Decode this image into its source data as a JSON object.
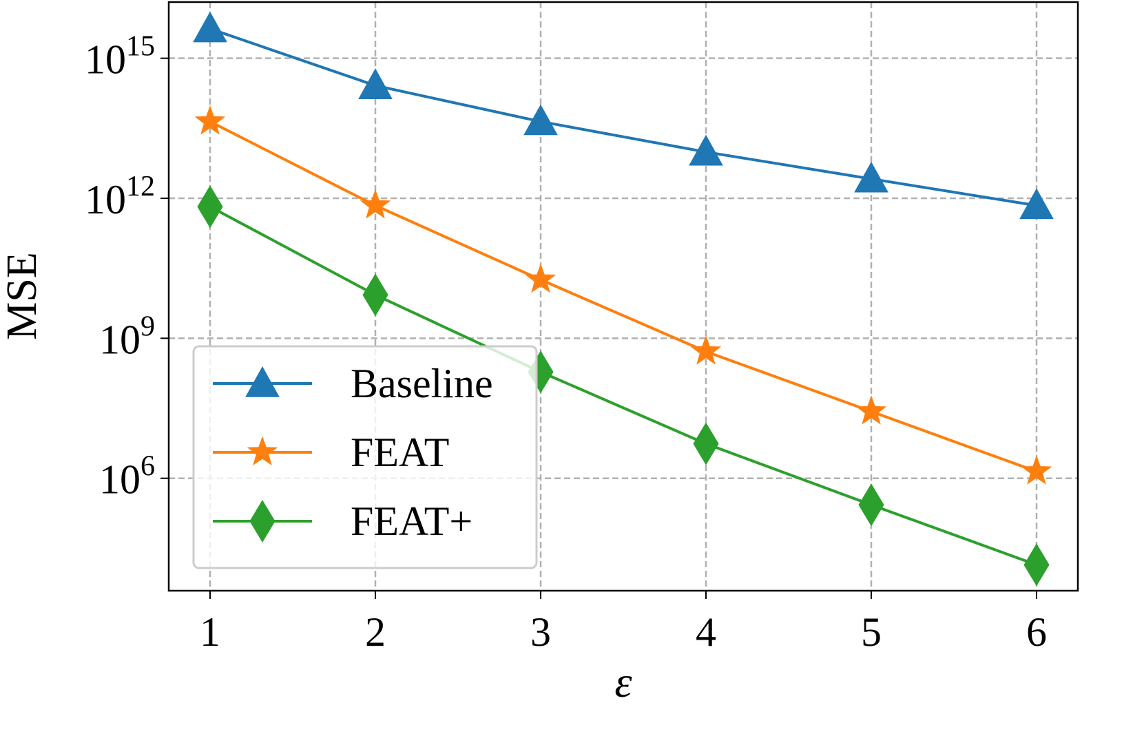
{
  "chart_data": {
    "type": "line",
    "xlabel": "ε",
    "ylabel": "MSE",
    "x": [
      1,
      2,
      3,
      4,
      5,
      6
    ],
    "xlim": [
      0.75,
      6.25
    ],
    "xticks": [
      1,
      2,
      3,
      4,
      5,
      6
    ],
    "yscale": "log",
    "ylim": [
      3900,
      16000000000000000
    ],
    "yticks": [
      {
        "value": 1000000,
        "label": "10^6"
      },
      {
        "value": 1000000000,
        "label": "10^9"
      },
      {
        "value": 1000000000000,
        "label": "10^12"
      },
      {
        "value": 1000000000000000,
        "label": "10^15"
      }
    ],
    "grid": true,
    "legend": "lower left",
    "series": [
      {
        "name": "Baseline",
        "color": "#1f77b4",
        "marker": "triangle",
        "values": [
          4300000000000000,
          260000000000000,
          44000000000000,
          9800000000000,
          2600000000000,
          700000000000
        ]
      },
      {
        "name": "FEAT",
        "color": "#ff7f0e",
        "marker": "star",
        "values": [
          44000000000000,
          700000000000,
          18000000000,
          520000000,
          27000000,
          1400000
        ]
      },
      {
        "name": "FEAT+",
        "color": "#2ca02c",
        "marker": "diamond",
        "values": [
          660000000000,
          8500000000,
          190000000,
          5500000,
          270000,
          14000
        ]
      }
    ]
  }
}
